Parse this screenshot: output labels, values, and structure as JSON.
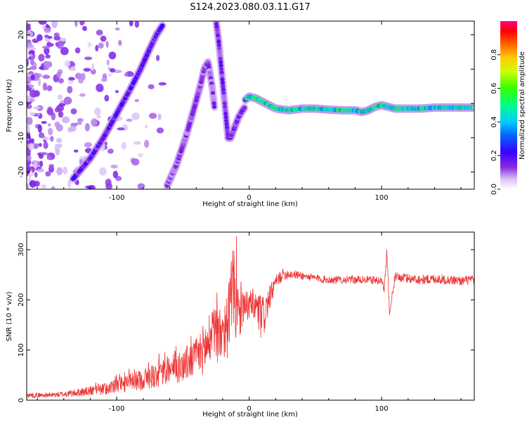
{
  "title": "S124.2023.080.03.11.G17",
  "colors": {
    "snr_line": "#ee3333",
    "axis": "#000000"
  },
  "chart_data": [
    {
      "type": "heatmap",
      "xlabel": "Height of straight line (km)",
      "ylabel": "Frequency (Hz)",
      "xlim": [
        -168,
        170
      ],
      "ylim": [
        -25,
        24
      ],
      "xticks": [
        -100,
        0,
        100
      ],
      "yticks": [
        20,
        10,
        0,
        -10,
        -20
      ],
      "colorbar": {
        "label": "Normalized spectral amplitude",
        "range": [
          0,
          1
        ],
        "ticks": [
          0.0,
          0.2,
          0.4,
          0.6,
          0.8
        ],
        "colormap": [
          "#ffffff",
          "#c9a6f2",
          "#8a2be2",
          "#3b00ff",
          "#0066ff",
          "#00ccff",
          "#00ff88",
          "#33ff00",
          "#ccff00",
          "#ffcc00",
          "#ff6600",
          "#ff0000",
          "#ff0088"
        ]
      },
      "ridges": [
        {
          "name": "",
          "x": [
            -133,
            -120,
            -110,
            -100,
            -90,
            -82,
            -75,
            -70,
            -65
          ],
          "y": [
            -22,
            -16,
            -10,
            -3,
            4,
            10,
            16,
            20,
            23
          ],
          "amp": 0.45
        },
        {
          "name": "",
          "x": [
            -62,
            -55,
            -48,
            -42,
            -37,
            -34,
            -31,
            -28,
            -26
          ],
          "y": [
            -24,
            -18,
            -10,
            -2,
            5,
            10,
            12,
            5,
            -2
          ],
          "amp": 0.3
        },
        {
          "name": "",
          "x": [
            -25,
            -23,
            -21,
            -19,
            -17,
            -16,
            -14,
            -11,
            -8,
            -5,
            -3
          ],
          "y": [
            24,
            18,
            10,
            2,
            -6,
            -10,
            -10,
            -7,
            -4,
            -2,
            -1
          ],
          "amp": 0.35
        },
        {
          "name": "",
          "x": [
            -3,
            0,
            5,
            10,
            20,
            30,
            40,
            50,
            60,
            70,
            80,
            85,
            90,
            95,
            100,
            110,
            120,
            130,
            140,
            150,
            160,
            170
          ],
          "y": [
            1,
            2,
            1.5,
            0.5,
            -1.5,
            -2,
            -1.5,
            -1.5,
            -1.8,
            -2,
            -2,
            -2.5,
            -2,
            -1,
            -0.5,
            -1.5,
            -1.5,
            -1.5,
            -1.2,
            -1.2,
            -1.2,
            -1.2
          ],
          "amp": 0.85
        }
      ]
    },
    {
      "type": "line",
      "xlabel": "Height of straight line (km)",
      "ylabel": "SNR (10 * v/v)",
      "xlim": [
        -168,
        170
      ],
      "ylim": [
        0,
        335
      ],
      "xticks": [
        -100,
        0,
        100
      ],
      "yticks": [
        0,
        100,
        200,
        300
      ],
      "series": [
        {
          "x": [
            -168,
            -150,
            -140,
            -130,
            -120,
            -110,
            -100,
            -90,
            -80,
            -70,
            -60,
            -50,
            -40,
            -35,
            -30,
            -25,
            -20,
            -15,
            -12,
            -10,
            -5,
            0,
            5,
            10,
            15,
            20,
            25,
            30,
            40,
            50,
            60,
            70,
            80,
            90,
            100,
            102,
            104,
            106,
            110,
            120,
            130,
            140,
            150,
            160,
            170
          ],
          "values": [
            10,
            10,
            12,
            15,
            18,
            22,
            28,
            35,
            42,
            50,
            60,
            70,
            85,
            100,
            115,
            130,
            140,
            155,
            240,
            150,
            180,
            190,
            185,
            160,
            200,
            235,
            250,
            252,
            248,
            243,
            240,
            240,
            240,
            240,
            238,
            220,
            300,
            170,
            245,
            243,
            240,
            242,
            240,
            238,
            240
          ],
          "noise": [
            5,
            5,
            6,
            8,
            10,
            12,
            15,
            18,
            22,
            26,
            30,
            35,
            40,
            50,
            55,
            60,
            65,
            70,
            90,
            55,
            35,
            30,
            40,
            50,
            25,
            15,
            12,
            10,
            8,
            8,
            8,
            8,
            8,
            8,
            8,
            10,
            10,
            10,
            10,
            10,
            10,
            10,
            10,
            10,
            10
          ]
        }
      ]
    }
  ]
}
